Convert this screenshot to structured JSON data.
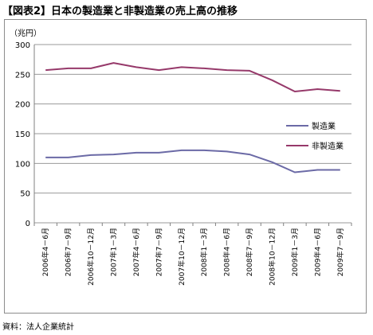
{
  "title": "【図表2】日本の製造業と非製造業の売上高の推移",
  "unit_label": "（兆円）",
  "source": "資料：法人企業統計",
  "colors": {
    "series1": "#6b6aa6",
    "series2": "#96396a",
    "grid": "#9a9a9a"
  },
  "chart_data": {
    "type": "line",
    "title": "【図表2】日本の製造業と非製造業の売上高の推移",
    "ylabel": "（兆円）",
    "xlabel": "",
    "ylim": [
      0,
      300
    ],
    "yticks": [
      0,
      50,
      100,
      150,
      200,
      250,
      300
    ],
    "grid": true,
    "legend": "right",
    "categories": [
      "2006年4－6月",
      "2006年7－9月",
      "2006年10－12月",
      "2007年1－3月",
      "2007年4－6月",
      "2007年7－9月",
      "2007年10－12月",
      "2008年1－3月",
      "2008年4－6月",
      "2008年7－9月",
      "2008年10－12月",
      "2009年1－3月",
      "2009年4－6月",
      "2009年7－9月"
    ],
    "series": [
      {
        "name": "製造業",
        "values": [
          110,
          110,
          114,
          115,
          118,
          118,
          122,
          122,
          120,
          115,
          102,
          85,
          89,
          89
        ]
      },
      {
        "name": "非製造業",
        "values": [
          257,
          260,
          260,
          269,
          262,
          257,
          262,
          260,
          257,
          256,
          240,
          221,
          225,
          222
        ]
      }
    ]
  }
}
